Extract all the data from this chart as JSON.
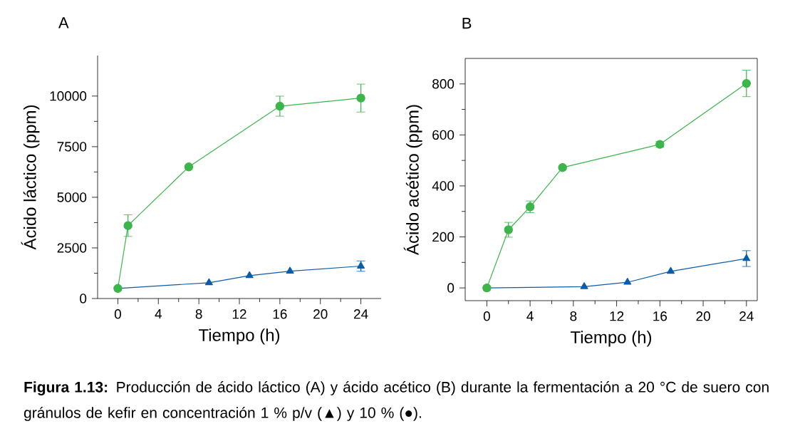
{
  "chart_data": [
    {
      "type": "line",
      "title": "A",
      "xlabel": "Tiempo (h)",
      "ylabel": "Ácido láctico (ppm)",
      "xlim": [
        -2,
        26
      ],
      "ylim": [
        0,
        12000
      ],
      "xticks": [
        0,
        4,
        8,
        12,
        16,
        20,
        24
      ],
      "yticks": [
        0,
        2500,
        5000,
        7500,
        10000
      ],
      "series": [
        {
          "color": "#0b5ca8",
          "marker": "triangle",
          "x": [
            0,
            9,
            13,
            17,
            24
          ],
          "values": [
            500,
            780,
            1130,
            1350,
            1600
          ],
          "errors": [
            null,
            null,
            null,
            null,
            255
          ]
        },
        {
          "color": "#3cb54a",
          "marker": "circle",
          "x": [
            0,
            1,
            7,
            16,
            24
          ],
          "values": [
            500,
            3600,
            6500,
            9500,
            9900
          ],
          "errors": [
            null,
            535,
            null,
            495,
            690
          ]
        }
      ],
      "annotations": [
        "**Figura 1.13:** Producción de ácido láctico (A) y ácido acético (B) durante la fermentación a 20 °C de suero con gránulos de kefir en concentración 1 % p/v (▲) y 10 % (●)."
      ]
    },
    {
      "type": "line",
      "title": "B",
      "xlabel": "Tiempo (h)",
      "ylabel": "Ácido acético (ppm)",
      "xlim": [
        -2,
        25
      ],
      "ylim": [
        -50,
        900
      ],
      "xticks": [
        0,
        4,
        8,
        12,
        16,
        20,
        24
      ],
      "yticks": [
        0,
        200,
        400,
        600,
        800
      ],
      "series": [
        {
          "color": "#0b5ca8",
          "marker": "triangle",
          "x": [
            0,
            9,
            13,
            17,
            24
          ],
          "values": [
            0,
            5,
            22,
            65,
            115
          ],
          "errors": [
            null,
            null,
            null,
            null,
            31
          ]
        },
        {
          "color": "#3cb54a",
          "marker": "circle",
          "x": [
            0,
            2,
            4,
            7,
            16,
            24
          ],
          "values": [
            0,
            228,
            318,
            472,
            563,
            802
          ],
          "errors": [
            null,
            29,
            23,
            null,
            11,
            52
          ]
        }
      ]
    }
  ]
}
